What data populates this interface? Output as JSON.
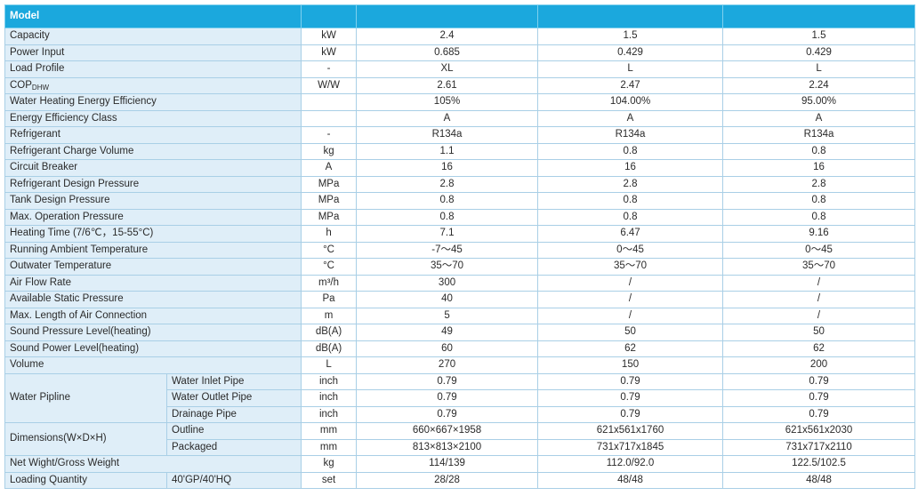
{
  "header": {
    "model_label": "Model",
    "col1": "",
    "col2": "",
    "col3": ""
  },
  "rows": [
    {
      "label": "Capacity",
      "unit": "kW",
      "v": [
        "2.4",
        "1.5",
        "1.5"
      ]
    },
    {
      "label": "Power Input",
      "unit": "kW",
      "v": [
        "0.685",
        "0.429",
        "0.429"
      ]
    },
    {
      "label": "Load Profile",
      "unit": "-",
      "v": [
        "XL",
        "L",
        "L"
      ]
    },
    {
      "label_main": "COP",
      "label_sub": "DHW",
      "unit": "W/W",
      "v": [
        "2.61",
        "2.47",
        "2.24"
      ]
    },
    {
      "label": "Water Heating Energy Efficiency",
      "unit": "",
      "v": [
        "105%",
        "104.00%",
        "95.00%"
      ]
    },
    {
      "label": "Energy Efficiency Class",
      "unit": "",
      "v": [
        "A",
        "A",
        "A"
      ]
    },
    {
      "label": "Refrigerant",
      "unit": "-",
      "v": [
        "R134a",
        "R134a",
        "R134a"
      ]
    },
    {
      "label": "Refrigerant Charge Volume",
      "unit": "kg",
      "v": [
        "1.1",
        "0.8",
        "0.8"
      ]
    },
    {
      "label": "Circuit Breaker",
      "unit": "A",
      "v": [
        "16",
        "16",
        "16"
      ]
    },
    {
      "label": "Refrigerant Design Pressure",
      "unit": "MPa",
      "v": [
        "2.8",
        "2.8",
        "2.8"
      ]
    },
    {
      "label": "Tank Design Pressure",
      "unit": "MPa",
      "v": [
        "0.8",
        "0.8",
        "0.8"
      ]
    },
    {
      "label": "Max. Operation Pressure",
      "unit": "MPa",
      "v": [
        "0.8",
        "0.8",
        "0.8"
      ]
    },
    {
      "label": "Heating Time (7/6℃，15-55°C)",
      "unit": "h",
      "v": [
        "7.1",
        "6.47",
        "9.16"
      ]
    },
    {
      "label": "Running Ambient Temperature",
      "unit": "°C",
      "v": [
        "-7～45",
        "0～45",
        "0～45"
      ]
    },
    {
      "label": "Outwater Temperature",
      "unit": "°C",
      "v": [
        "35～70",
        "35～70",
        "35～70"
      ]
    },
    {
      "label": "Air Flow Rate",
      "unit": "m³/h",
      "v": [
        "300",
        "/",
        "/"
      ]
    },
    {
      "label": "Available Static Pressure",
      "unit": "Pa",
      "v": [
        "40",
        "/",
        "/"
      ]
    },
    {
      "label": "Max. Length of Air Connection",
      "unit": "m",
      "v": [
        "5",
        "/",
        "/"
      ]
    },
    {
      "label": "Sound Pressure Level(heating)",
      "unit": "dB(A)",
      "v": [
        "49",
        "50",
        "50"
      ]
    },
    {
      "label": "Sound Power Level(heating)",
      "unit": "dB(A)",
      "v": [
        "60",
        "62",
        "62"
      ]
    },
    {
      "label": "Volume",
      "unit": "L",
      "v": [
        "270",
        "150",
        "200"
      ]
    }
  ],
  "water": {
    "label": "Water Pipline",
    "items": [
      {
        "sub": "Water Inlet Pipe",
        "unit": "inch",
        "v": [
          "0.79",
          "0.79",
          "0.79"
        ]
      },
      {
        "sub": "Water Outlet Pipe",
        "unit": "inch",
        "v": [
          "0.79",
          "0.79",
          "0.79"
        ]
      },
      {
        "sub": "Drainage Pipe",
        "unit": "inch",
        "v": [
          "0.79",
          "0.79",
          "0.79"
        ]
      }
    ]
  },
  "dims": {
    "label": "Dimensions(W×D×H)",
    "items": [
      {
        "sub": "Outline",
        "unit": "mm",
        "v": [
          "660×667×1958",
          "621x561x1760",
          "621x561x2030"
        ]
      },
      {
        "sub": "Packaged",
        "unit": "mm",
        "v": [
          "813×813×2100",
          "731x717x1845",
          "731x717x2110"
        ]
      }
    ]
  },
  "weight": {
    "label": "Net Wight/Gross Weight",
    "unit": "kg",
    "v": [
      "114/139",
      "112.0/92.0",
      "122.5/102.5"
    ]
  },
  "loading": {
    "label": "Loading Quantity",
    "sub": "40'GP/40'HQ",
    "unit": "set",
    "v": [
      "28/28",
      "48/48",
      "48/48"
    ]
  }
}
